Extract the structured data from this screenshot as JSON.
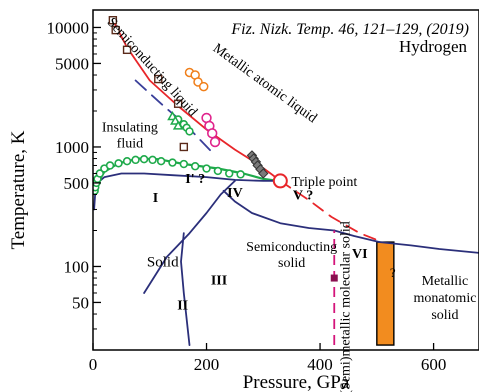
{
  "chart_data": {
    "type": "line",
    "title": "",
    "subtitle": "",
    "citation": "Fiz. Nizk. Temp. 46, 121–129, (2019)",
    "substance": "Hydrogen",
    "xlabel": "Pressure, GPa",
    "ylabel": "Temperature, K",
    "x_scale": "linear",
    "y_scale": "log",
    "xlim": [
      0,
      680
    ],
    "ylim": [
      20,
      14000
    ],
    "x_ticks": [
      0,
      200,
      400,
      600
    ],
    "y_ticks": [
      50,
      100,
      500,
      1000,
      5000,
      10000
    ],
    "grid": false,
    "legend": "none",
    "colors": {
      "metallization": "#e8262a",
      "melting": "#1faa4b",
      "boundaries": "#2b2f7a",
      "semi_metallic": "#d4147a",
      "pink": "#e0248c",
      "orange": "#f07f1a",
      "orange_band": "#f28c1f",
      "gray": "#7a7a7a",
      "black": "#000000"
    },
    "regions": [
      {
        "label": "Semiconducting liquid",
        "x": 40,
        "y": 4500
      },
      {
        "label": "Metallic atomic liquid",
        "x": 230,
        "y": 4000
      },
      {
        "label": "Insulating fluid",
        "x": 65,
        "y": 1250
      },
      {
        "label": "Solid",
        "x": 95,
        "y": 110
      },
      {
        "label": "Semiconducting solid",
        "x": 330,
        "y": 120
      },
      {
        "label": "(Semi)metallic molecular solid",
        "x": 440,
        "y": 80
      },
      {
        "label": "Metallic monatomic solid",
        "x": 610,
        "y": 60
      }
    ],
    "phase_labels": [
      {
        "label": "I",
        "x": 110,
        "y": 380
      },
      {
        "label": "I' ?",
        "x": 180,
        "y": 550
      },
      {
        "label": "IV",
        "x": 250,
        "y": 420
      },
      {
        "label": "V ?",
        "x": 370,
        "y": 400
      },
      {
        "label": "III",
        "x": 222,
        "y": 78
      },
      {
        "label": "II",
        "x": 158,
        "y": 48
      },
      {
        "label": "VI",
        "x": 470,
        "y": 130
      },
      {
        "label": "?",
        "x": 528,
        "y": 90
      }
    ],
    "triple_point": {
      "label": "Triple point",
      "x": 330,
      "y": 520
    },
    "series": [
      {
        "role": "metallization_line",
        "style": "solid",
        "x": [
          35,
          60,
          100,
          150,
          200,
          250,
          290,
          315,
          330
        ],
        "y": [
          11500,
          6800,
          3600,
          2200,
          1400,
          950,
          720,
          590,
          520
        ]
      },
      {
        "role": "metallization_extension",
        "style": "dashed",
        "x": [
          330,
          380,
          420,
          470,
          510
        ],
        "y": [
          520,
          360,
          260,
          190,
          160
        ]
      },
      {
        "role": "semiconducting_boundary",
        "style": "dashed",
        "x": [
          75,
          120,
          165,
          210
        ],
        "y": [
          3600,
          2300,
          1500,
          900
        ]
      },
      {
        "role": "melting_line",
        "style": "solid",
        "x": [
          3,
          8,
          20,
          45,
          80,
          115,
          160,
          220,
          265,
          300,
          325
        ],
        "y": [
          430,
          500,
          620,
          730,
          800,
          790,
          720,
          660,
          600,
          540,
          520
        ]
      },
      {
        "role": "solid_boundary_I",
        "style": "solid",
        "x": [
          2,
          4,
          8,
          20,
          50,
          90,
          140,
          200,
          250,
          300,
          330
        ],
        "y": [
          300,
          420,
          500,
          560,
          600,
          600,
          580,
          560,
          530,
          520,
          520
        ]
      },
      {
        "role": "boundary_I_III",
        "style": "solid",
        "x": [
          90,
          130,
          170,
          200,
          225,
          250
        ],
        "y": [
          60,
          120,
          190,
          280,
          400,
          520
        ]
      },
      {
        "role": "boundary_II_III",
        "style": "solid",
        "x": [
          170,
          160,
          155,
          160
        ],
        "y": [
          22,
          60,
          110,
          190
        ]
      },
      {
        "role": "boundary_IV_V",
        "style": "solid",
        "x": [
          230,
          250,
          280,
          330,
          380,
          425
        ],
        "y": [
          430,
          350,
          280,
          230,
          210,
          200
        ]
      },
      {
        "role": "boundary_V_VI",
        "style": "solid",
        "x": [
          425,
          460,
          505
        ],
        "y": [
          200,
          180,
          160
        ]
      },
      {
        "role": "boundary_high",
        "style": "solid",
        "x": [
          505,
          560,
          610,
          680
        ],
        "y": [
          160,
          150,
          140,
          130
        ]
      }
    ],
    "semi_metallic_line": {
      "x": 425,
      "y_range": [
        22,
        200
      ],
      "marker": {
        "x": 425,
        "y": 80
      }
    },
    "orange_band": {
      "x_range": [
        500,
        530
      ],
      "y_range": [
        22,
        160
      ],
      "label": "?"
    },
    "markers": {
      "green_circles": {
        "x": [
          3,
          4,
          6,
          8,
          12,
          20,
          30,
          45,
          60,
          75,
          90,
          105,
          120,
          140,
          160,
          180,
          200,
          220,
          240,
          260
        ],
        "y": [
          430,
          460,
          500,
          540,
          600,
          660,
          700,
          730,
          760,
          780,
          790,
          780,
          760,
          740,
          720,
          690,
          660,
          630,
          600,
          590
        ]
      },
      "green_upper_circles": {
        "x": [
          150,
          160,
          165,
          170
        ],
        "y": [
          1700,
          1550,
          1450,
          1350
        ]
      },
      "green_triangles": {
        "x": [
          140,
          145,
          150
        ],
        "y": [
          1800,
          1650,
          1500
        ]
      },
      "orange_circles": {
        "x": [
          170,
          180,
          185,
          195
        ],
        "y": [
          4200,
          4000,
          3500,
          3200
        ]
      },
      "pink_circles": {
        "x": [
          200,
          205,
          210,
          215
        ],
        "y": [
          1750,
          1500,
          1300,
          1100
        ]
      },
      "gray_diamonds": {
        "x": [
          280,
          283,
          287,
          290,
          295,
          300
        ],
        "y": [
          850,
          800,
          750,
          700,
          650,
          600
        ]
      },
      "squares": {
        "x": [
          35,
          40,
          60,
          115,
          150,
          160
        ],
        "y": [
          11500,
          9500,
          6500,
          3700,
          2300,
          1000
        ]
      }
    }
  }
}
